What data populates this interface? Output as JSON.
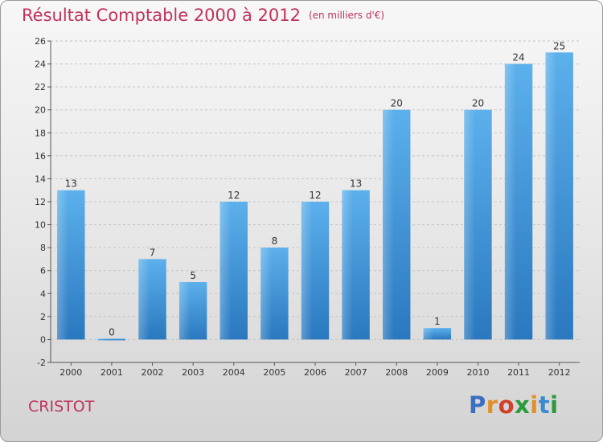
{
  "header": {
    "title": "Résultat Comptable 2000 à 2012",
    "subtitle": "(en milliers d'€)"
  },
  "footer": {
    "place": "CRISTOT",
    "logo": "Proxiti",
    "logo_colors": [
      "#3a6fc0",
      "#e0902a",
      "#d0402a",
      "#2a9a3a",
      "#e0902a",
      "#3a8ad0",
      "#2a9a3a"
    ]
  },
  "chart_data": {
    "type": "bar",
    "categories": [
      "2000",
      "2001",
      "2002",
      "2003",
      "2004",
      "2005",
      "2006",
      "2007",
      "2008",
      "2009",
      "2010",
      "2011",
      "2012"
    ],
    "values": [
      13,
      0,
      7,
      5,
      12,
      8,
      12,
      13,
      20,
      1,
      20,
      24,
      25
    ],
    "data_labels": [
      "13",
      "0",
      "7",
      "5",
      "12",
      "8",
      "12",
      "13",
      "20",
      "1",
      "20",
      "24",
      "25"
    ],
    "ylim": [
      -2,
      26
    ],
    "yticks": [
      -2,
      0,
      2,
      4,
      6,
      8,
      10,
      12,
      14,
      16,
      18,
      20,
      22,
      24,
      26
    ],
    "ytick_labels": [
      "-2",
      "0",
      "2",
      "4",
      "6",
      "8",
      "10",
      "12",
      "14",
      "16",
      "18",
      "20",
      "22",
      "24",
      "26"
    ],
    "grid": true,
    "bar_color": "#4a9fe0"
  }
}
